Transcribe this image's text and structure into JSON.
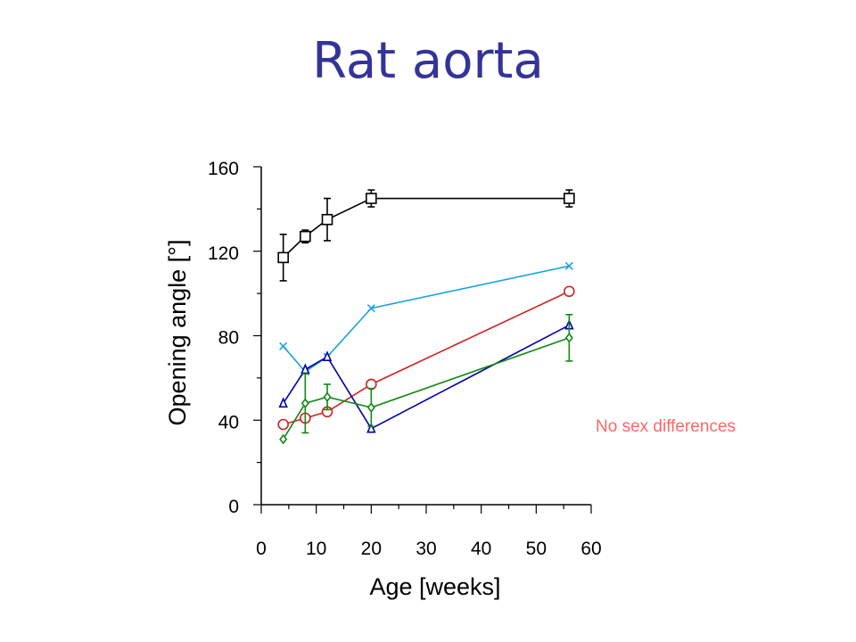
{
  "slide": {
    "title": "Rat aorta",
    "note": "No sex differences"
  },
  "chart_data": {
    "type": "line",
    "title": "",
    "xlabel": "Age [weeks]",
    "ylabel": "Opening angle [°]",
    "xlim": [
      0,
      60
    ],
    "ylim": [
      0,
      160
    ],
    "xticks": [
      0,
      10,
      20,
      30,
      40,
      50,
      60
    ],
    "yticks": [
      0,
      40,
      80,
      120,
      160
    ],
    "grid": false,
    "series": [
      {
        "color": "#000000",
        "marker": "square",
        "x": [
          4,
          8,
          12,
          20,
          56
        ],
        "y": [
          117,
          127,
          135,
          145,
          145
        ],
        "err": [
          11,
          3,
          10,
          4,
          4
        ]
      },
      {
        "color": "#1ba1e2",
        "marker": "x",
        "x": [
          4,
          8,
          12,
          20,
          56
        ],
        "y": [
          75,
          63,
          70,
          93,
          113
        ]
      },
      {
        "color": "#cc2222",
        "marker": "circle",
        "x": [
          4,
          8,
          12,
          20,
          56
        ],
        "y": [
          38,
          41,
          44,
          57,
          101
        ]
      },
      {
        "color": "#0000aa",
        "marker": "triangle",
        "x": [
          4,
          8,
          12,
          20,
          56
        ],
        "y": [
          48,
          64,
          70,
          36,
          85
        ]
      },
      {
        "color": "#118811",
        "marker": "diamond",
        "x": [
          4,
          8,
          12,
          20,
          56
        ],
        "y": [
          31,
          48,
          51,
          46,
          79
        ],
        "err": [
          0,
          14,
          6,
          9,
          11
        ]
      }
    ]
  }
}
